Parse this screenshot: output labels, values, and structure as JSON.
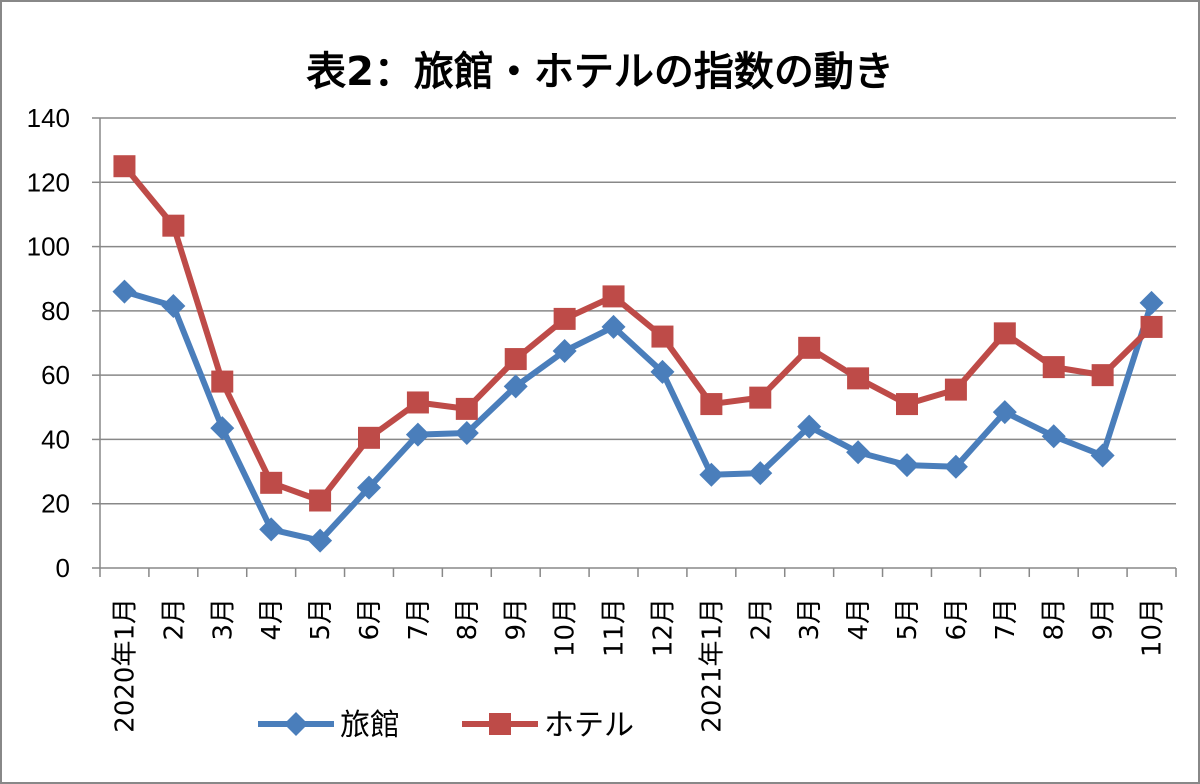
{
  "chart_data": {
    "type": "line",
    "title": "表2：旅館・ホテルの指数の動き",
    "xlabel": "",
    "ylabel": "",
    "ylim": [
      0,
      140
    ],
    "yticks": [
      "0",
      "20",
      "40",
      "60",
      "80",
      "100",
      "120",
      "140"
    ],
    "categories": [
      "2020年1月",
      "2月",
      "3月",
      "4月",
      "5月",
      "6月",
      "7月",
      "8月",
      "9月",
      "10月",
      "11月",
      "12月",
      "2021年1月",
      "2月",
      "3月",
      "4月",
      "5月",
      "6月",
      "7月",
      "8月",
      "9月",
      "10月"
    ],
    "grid": true,
    "legend": "bottom",
    "series": [
      {
        "name": "旅館",
        "color": "#4a7ebb",
        "marker": "diamond",
        "values": [
          86,
          81.5,
          43.5,
          12,
          8.5,
          25,
          41.5,
          42,
          56.5,
          67.5,
          75,
          61,
          29,
          29.5,
          44,
          36,
          32,
          31.5,
          48.5,
          41,
          35,
          82.5
        ]
      },
      {
        "name": "ホテル",
        "color": "#be4b48",
        "marker": "square",
        "values": [
          125,
          106.5,
          58,
          26.5,
          21,
          40.5,
          51.5,
          49.5,
          65,
          77.5,
          84.5,
          72,
          51,
          53,
          68.5,
          59,
          51,
          55.5,
          73,
          62.5,
          60,
          75
        ]
      }
    ]
  }
}
